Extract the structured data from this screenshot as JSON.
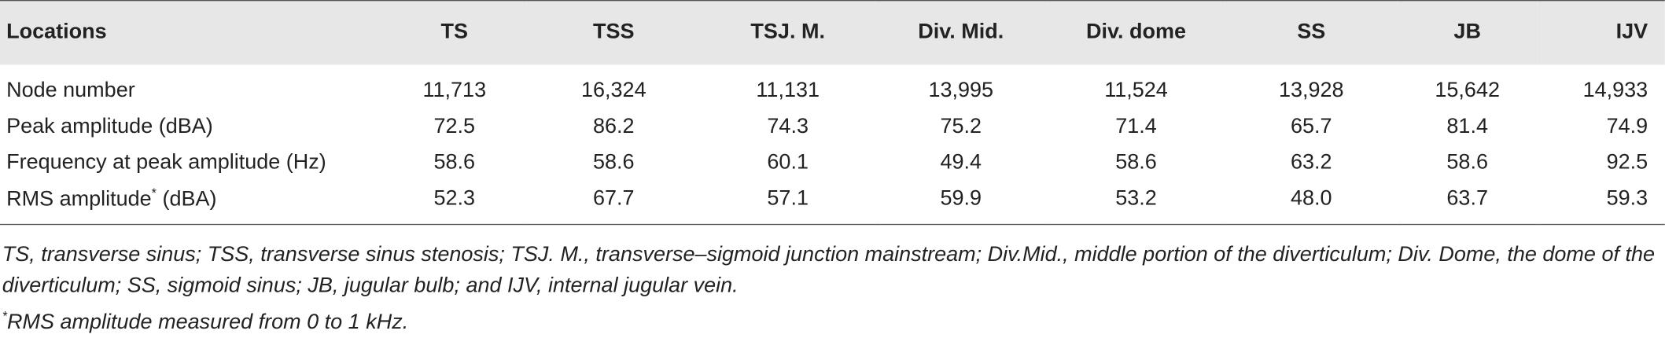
{
  "table": {
    "columns": [
      "Locations",
      "TS",
      "TSS",
      "TSJ. M.",
      "Div. Mid.",
      "Div. dome",
      "SS",
      "JB",
      "IJV"
    ],
    "rows": [
      {
        "label": "Node number",
        "values": [
          "11,713",
          "16,324",
          "11,131",
          "13,995",
          "11,524",
          "13,928",
          "15,642",
          "14,933"
        ]
      },
      {
        "label": "Peak amplitude (dBA)",
        "values": [
          "72.5",
          "86.2",
          "74.3",
          "75.2",
          "71.4",
          "65.7",
          "81.4",
          "74.9"
        ]
      },
      {
        "label": "Frequency at peak amplitude (Hz)",
        "values": [
          "58.6",
          "58.6",
          "60.1",
          "49.4",
          "58.6",
          "63.2",
          "58.6",
          "92.5"
        ]
      },
      {
        "label": "RMS amplitude",
        "label_mark": "*",
        "label_suffix": "(dBA)",
        "values": [
          "52.3",
          "67.7",
          "57.1",
          "59.9",
          "53.2",
          "48.0",
          "63.7",
          "59.3"
        ]
      }
    ]
  },
  "footnotes": {
    "abbreviations": "TS, transverse sinus; TSS, transverse sinus stenosis; TSJ. M., transverse–sigmoid junction mainstream; Div.Mid., middle portion of the diverticulum; Div. Dome, the dome of the diverticulum; SS, sigmoid sinus; JB, jugular bulb; and IJV, internal jugular vein.",
    "note_mark": "*",
    "note": "RMS amplitude measured from 0 to 1 kHz."
  }
}
